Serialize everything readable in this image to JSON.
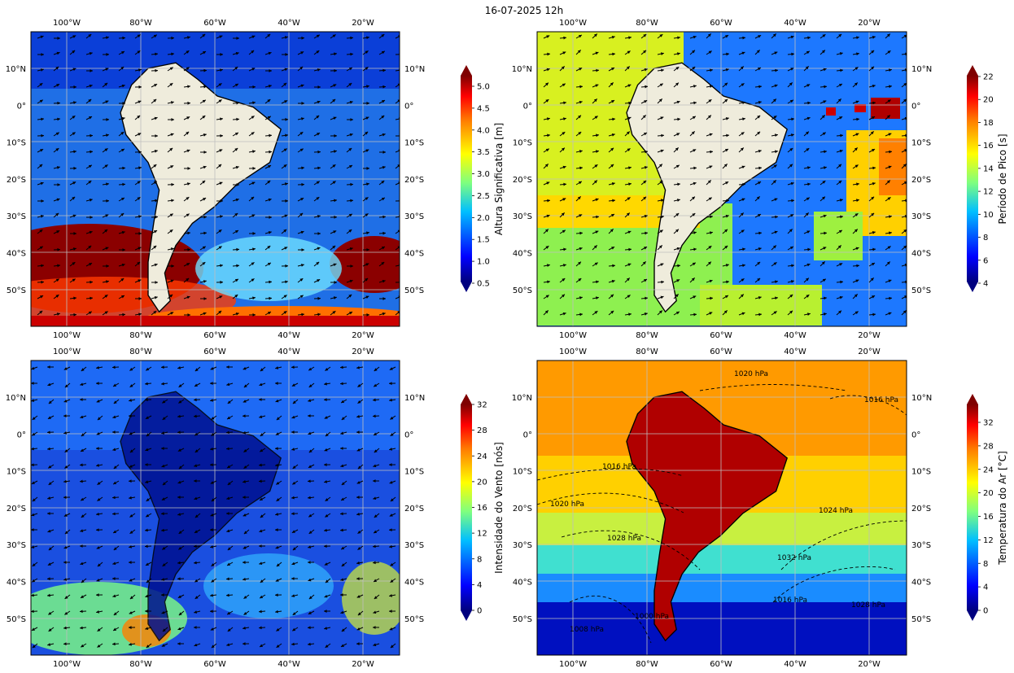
{
  "figure": {
    "title": "16-07-2025 12h"
  },
  "axes": {
    "lon_ticks": [
      "100°W",
      "80°W",
      "60°W",
      "40°W",
      "20°W"
    ],
    "lat_ticks": [
      "10°N",
      "0°",
      "10°S",
      "20°S",
      "30°S",
      "40°S",
      "50°S"
    ]
  },
  "panels": [
    {
      "id": "hs",
      "colorbar": {
        "label": "Altura Significativa [m]",
        "ticks": [
          "0.5",
          "1.0",
          "1.5",
          "2.0",
          "2.5",
          "3.0",
          "3.5",
          "4.0",
          "4.5",
          "5.0"
        ]
      }
    },
    {
      "id": "tp",
      "colorbar": {
        "label": "Período de Pico [s]",
        "ticks": [
          "4",
          "6",
          "8",
          "10",
          "12",
          "14",
          "16",
          "18",
          "20",
          "22"
        ]
      }
    },
    {
      "id": "wind",
      "colorbar": {
        "label": "Intensidade do Vento [nós]",
        "ticks": [
          "0",
          "4",
          "8",
          "12",
          "16",
          "20",
          "24",
          "28",
          "32"
        ]
      }
    },
    {
      "id": "temp",
      "colorbar": {
        "label": "Temperatura do Ar [°C]",
        "ticks": [
          "0",
          "4",
          "8",
          "12",
          "16",
          "20",
          "24",
          "28",
          "32"
        ]
      },
      "contour_labels": [
        {
          "text": "1020 hPa"
        },
        {
          "text": "1016 hPa"
        },
        {
          "text": "1016 hPa"
        },
        {
          "text": "1020 hPa"
        },
        {
          "text": "1024 hPa"
        },
        {
          "text": "1028 hPa"
        },
        {
          "text": "1032 hPa"
        },
        {
          "text": "1016 hPa"
        },
        {
          "text": "1028 hPa"
        },
        {
          "text": "1008 hPa"
        },
        {
          "text": "1000 hPa"
        }
      ]
    }
  ],
  "colors": {
    "land": "#efecdc",
    "jet": [
      "#00007f",
      "#0000ff",
      "#007fff",
      "#00ffff",
      "#7fff7f",
      "#ffff00",
      "#ff7f00",
      "#ff0000",
      "#7f0000"
    ]
  }
}
